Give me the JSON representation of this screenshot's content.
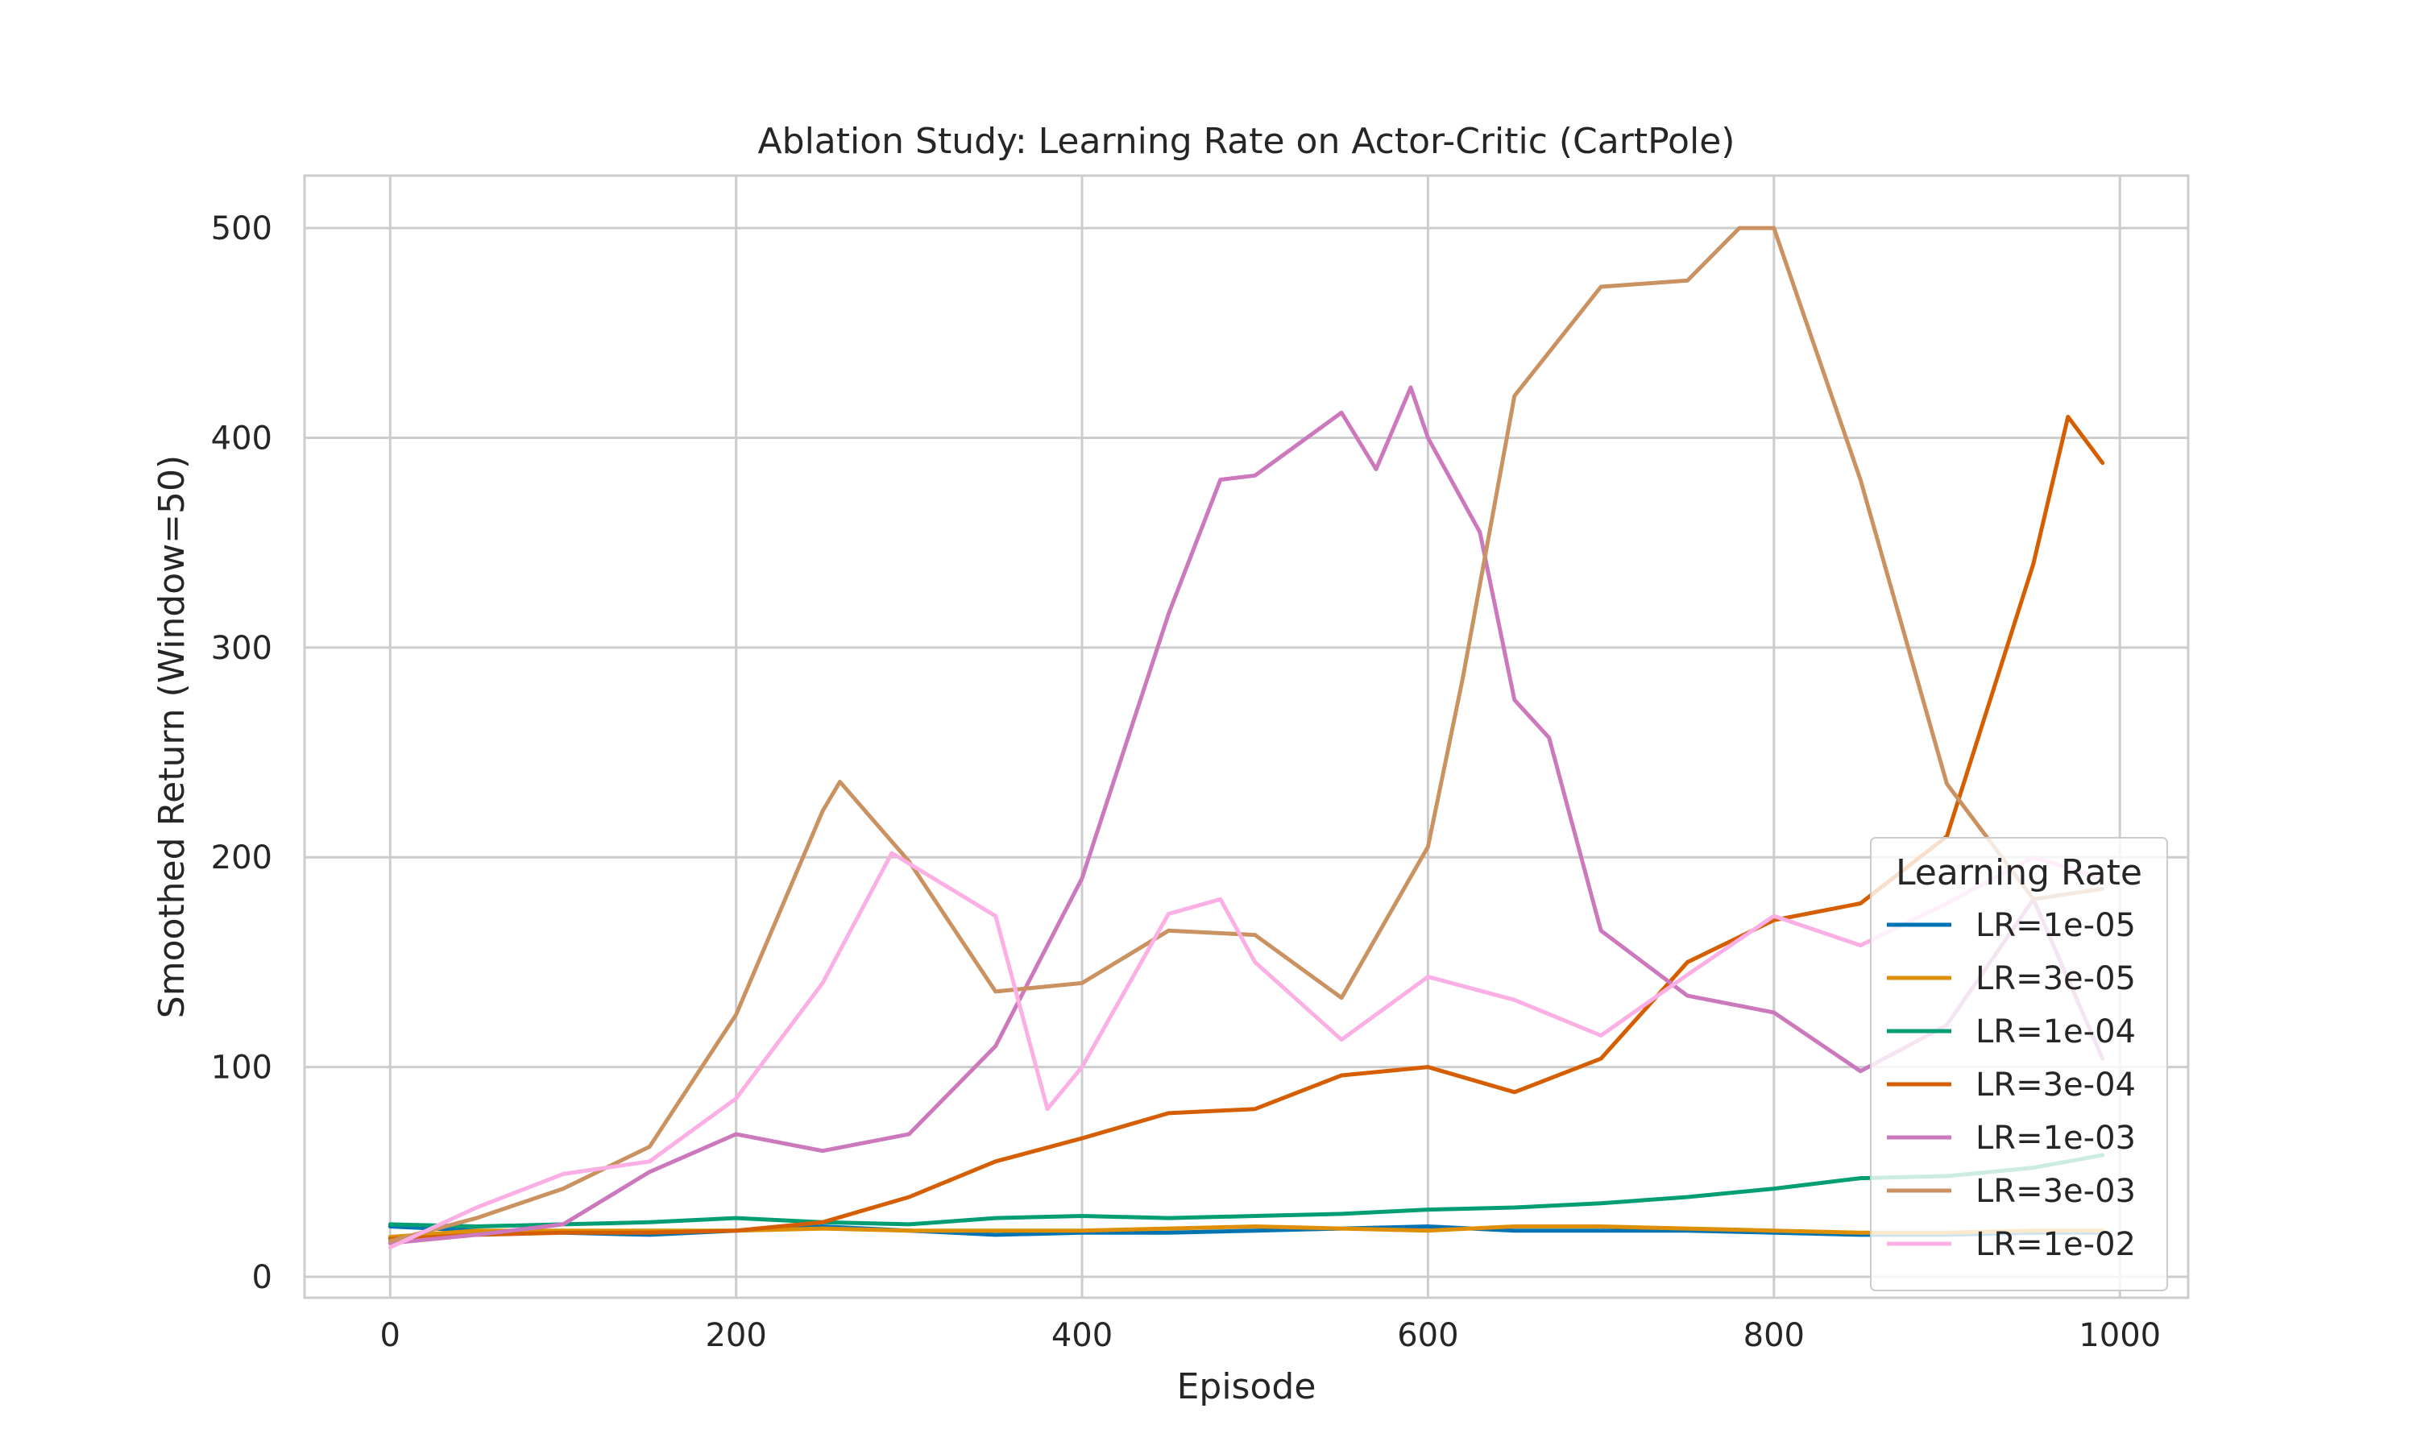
{
  "chart_data": {
    "type": "line",
    "title": "Ablation Study: Learning Rate on Actor-Critic (CartPole)",
    "xlabel": "Episode",
    "ylabel": "Smoothed Return (Window=50)",
    "xlim": [
      -49.5,
      1039.5
    ],
    "ylim": [
      -10,
      525
    ],
    "xticks": [
      0,
      200,
      400,
      600,
      800,
      1000
    ],
    "yticks": [
      0,
      100,
      200,
      300,
      400,
      500
    ],
    "grid": true,
    "legend": {
      "title": "Learning Rate",
      "placement": "lower-right"
    },
    "series": [
      {
        "name": "LR=1e-05",
        "color": "#0173b2",
        "x": [
          0,
          50,
          100,
          150,
          200,
          250,
          300,
          350,
          400,
          450,
          500,
          550,
          600,
          650,
          700,
          750,
          800,
          850,
          900,
          950,
          990
        ],
        "y": [
          24,
          22,
          21,
          20,
          22,
          24,
          22,
          20,
          21,
          21,
          22,
          23,
          24,
          22,
          22,
          22,
          21,
          20,
          20,
          21,
          21
        ]
      },
      {
        "name": "LR=3e-05",
        "color": "#de8f05",
        "x": [
          0,
          50,
          100,
          150,
          200,
          250,
          300,
          350,
          400,
          450,
          500,
          550,
          600,
          650,
          700,
          750,
          800,
          850,
          900,
          950,
          990
        ],
        "y": [
          19,
          22,
          22,
          22,
          22,
          23,
          22,
          22,
          22,
          23,
          24,
          23,
          22,
          24,
          24,
          23,
          22,
          21,
          21,
          22,
          22
        ]
      },
      {
        "name": "LR=1e-04",
        "color": "#029e73",
        "x": [
          0,
          50,
          100,
          150,
          200,
          250,
          300,
          350,
          400,
          450,
          500,
          550,
          600,
          650,
          700,
          750,
          800,
          850,
          900,
          950,
          990
        ],
        "y": [
          25,
          24,
          25,
          26,
          28,
          26,
          25,
          28,
          29,
          28,
          29,
          30,
          32,
          33,
          35,
          38,
          42,
          47,
          48,
          52,
          58
        ]
      },
      {
        "name": "LR=3e-04",
        "color": "#d55e00",
        "x": [
          0,
          50,
          100,
          150,
          200,
          250,
          300,
          350,
          400,
          450,
          500,
          550,
          600,
          650,
          700,
          750,
          800,
          850,
          900,
          950,
          970,
          990
        ],
        "y": [
          18,
          20,
          21,
          21,
          22,
          26,
          38,
          55,
          66,
          78,
          80,
          96,
          100,
          88,
          104,
          150,
          170,
          178,
          210,
          340,
          410,
          388
        ]
      },
      {
        "name": "LR=1e-03",
        "color": "#cc78bc",
        "x": [
          0,
          50,
          100,
          150,
          200,
          250,
          300,
          350,
          400,
          450,
          480,
          500,
          550,
          570,
          590,
          600,
          630,
          650,
          670,
          700,
          750,
          800,
          850,
          900,
          950,
          990
        ],
        "y": [
          16,
          20,
          25,
          50,
          68,
          60,
          68,
          110,
          190,
          316,
          380,
          382,
          412,
          385,
          424,
          400,
          355,
          275,
          257,
          165,
          134,
          126,
          98,
          120,
          180,
          104
        ]
      },
      {
        "name": "LR=3e-03",
        "color": "#ca9161",
        "x": [
          0,
          50,
          100,
          150,
          200,
          250,
          260,
          300,
          350,
          400,
          450,
          500,
          550,
          600,
          620,
          650,
          700,
          750,
          780,
          800,
          850,
          900,
          950,
          990
        ],
        "y": [
          17,
          28,
          42,
          62,
          125,
          222,
          236,
          198,
          136,
          140,
          165,
          163,
          133,
          205,
          285,
          420,
          472,
          475,
          500,
          500,
          380,
          235,
          180,
          185
        ]
      },
      {
        "name": "LR=1e-02",
        "color": "#fbafe4",
        "x": [
          0,
          50,
          100,
          150,
          200,
          250,
          290,
          350,
          380,
          400,
          450,
          480,
          500,
          550,
          600,
          650,
          700,
          750,
          800,
          850,
          900,
          950,
          990
        ],
        "y": [
          14,
          33,
          49,
          55,
          85,
          140,
          202,
          172,
          80,
          100,
          173,
          180,
          150,
          113,
          143,
          132,
          115,
          144,
          172,
          158,
          178,
          200,
          190
        ]
      }
    ]
  }
}
